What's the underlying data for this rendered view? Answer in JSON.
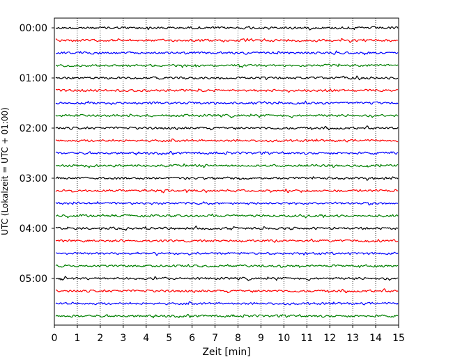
{
  "chart_data": {
    "type": "line",
    "title": "",
    "xlabel": "Zeit  [min]",
    "ylabel": "UTC (Lokalzeit = UTC + 01:00)",
    "xlim": [
      0,
      15
    ],
    "x_ticks": [
      "0",
      "1",
      "2",
      "3",
      "4",
      "5",
      "6",
      "7",
      "8",
      "9",
      "10",
      "11",
      "12",
      "13",
      "14",
      "15"
    ],
    "y_tick_labels": [
      "00:00",
      "01:00",
      "02:00",
      "03:00",
      "04:00",
      "05:00"
    ],
    "traces_per_hour": 4,
    "minutes_per_trace": 15,
    "trace_count": 24,
    "trace_colors": [
      "#000000",
      "#ff0000",
      "#0000ff",
      "#008000"
    ],
    "grid": "vertical-dotted",
    "legend": "none"
  }
}
